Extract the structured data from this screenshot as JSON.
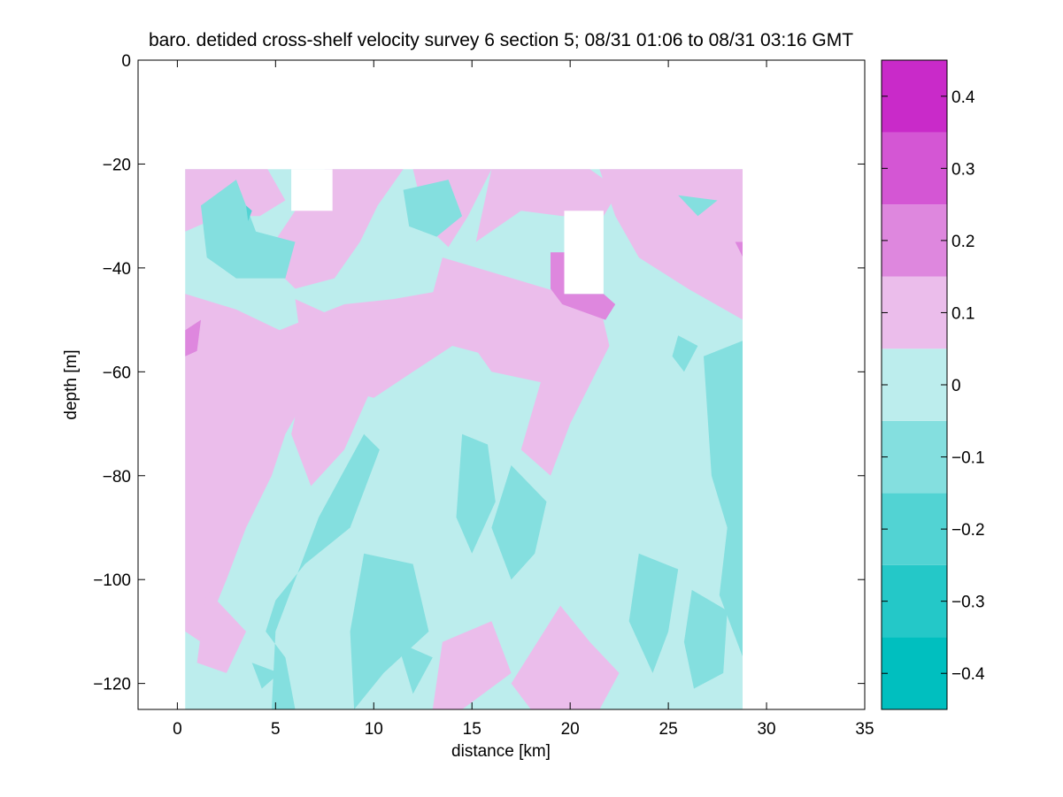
{
  "chart_data": {
    "type": "contour",
    "title": "baro. detided cross-shelf velocity survey 6 section 5; 08/31 01:06 to 08/31 03:16 GMT",
    "xlabel": "distance [km]",
    "ylabel": "depth [m]",
    "xlim": [
      -2,
      35
    ],
    "ylim": [
      -125,
      0
    ],
    "x_ticks": [
      0,
      5,
      10,
      15,
      20,
      25,
      30,
      35
    ],
    "y_ticks": [
      0,
      -20,
      -40,
      -60,
      -80,
      -100,
      -120
    ],
    "data_extent": {
      "x": [
        0.4,
        28.8
      ],
      "y": [
        -125,
        -21
      ]
    },
    "missing_regions": [
      {
        "x": [
          5.8,
          7.9
        ],
        "y": [
          -29,
          -21
        ]
      },
      {
        "x": [
          19.7,
          21.7
        ],
        "y": [
          -45,
          -29
        ]
      }
    ],
    "colorbar": {
      "levels": [
        -0.45,
        -0.35,
        -0.25,
        -0.15,
        -0.05,
        0.05,
        0.15,
        0.25,
        0.35,
        0.45
      ],
      "tick_labels": [
        "0.4",
        "0.3",
        "0.2",
        "0.1",
        "0",
        "-0.1",
        "-0.2",
        "-0.3",
        "-0.4"
      ],
      "tick_values": [
        0.4,
        0.3,
        0.2,
        0.1,
        0,
        -0.1,
        -0.2,
        -0.3,
        -0.4
      ],
      "colors": [
        "#00BFBF",
        "#24C8C8",
        "#52D3D3",
        "#84DFDF",
        "#BCEDED",
        "#EBBDEB",
        "#DE87DE",
        "#D456D4",
        "#C92AC9",
        "#C000C0"
      ]
    },
    "fields": [
      {
        "name": "neg_weak_bg",
        "value": -0.05,
        "cells": "full"
      },
      {
        "name": "pos_weak_patches",
        "value": 0.05
      },
      {
        "name": "neg_mod_patches",
        "value": -0.15
      },
      {
        "name": "pos_mod_patches",
        "value": 0.15
      },
      {
        "name": "neg_strong_dots",
        "value": -0.25
      }
    ]
  }
}
